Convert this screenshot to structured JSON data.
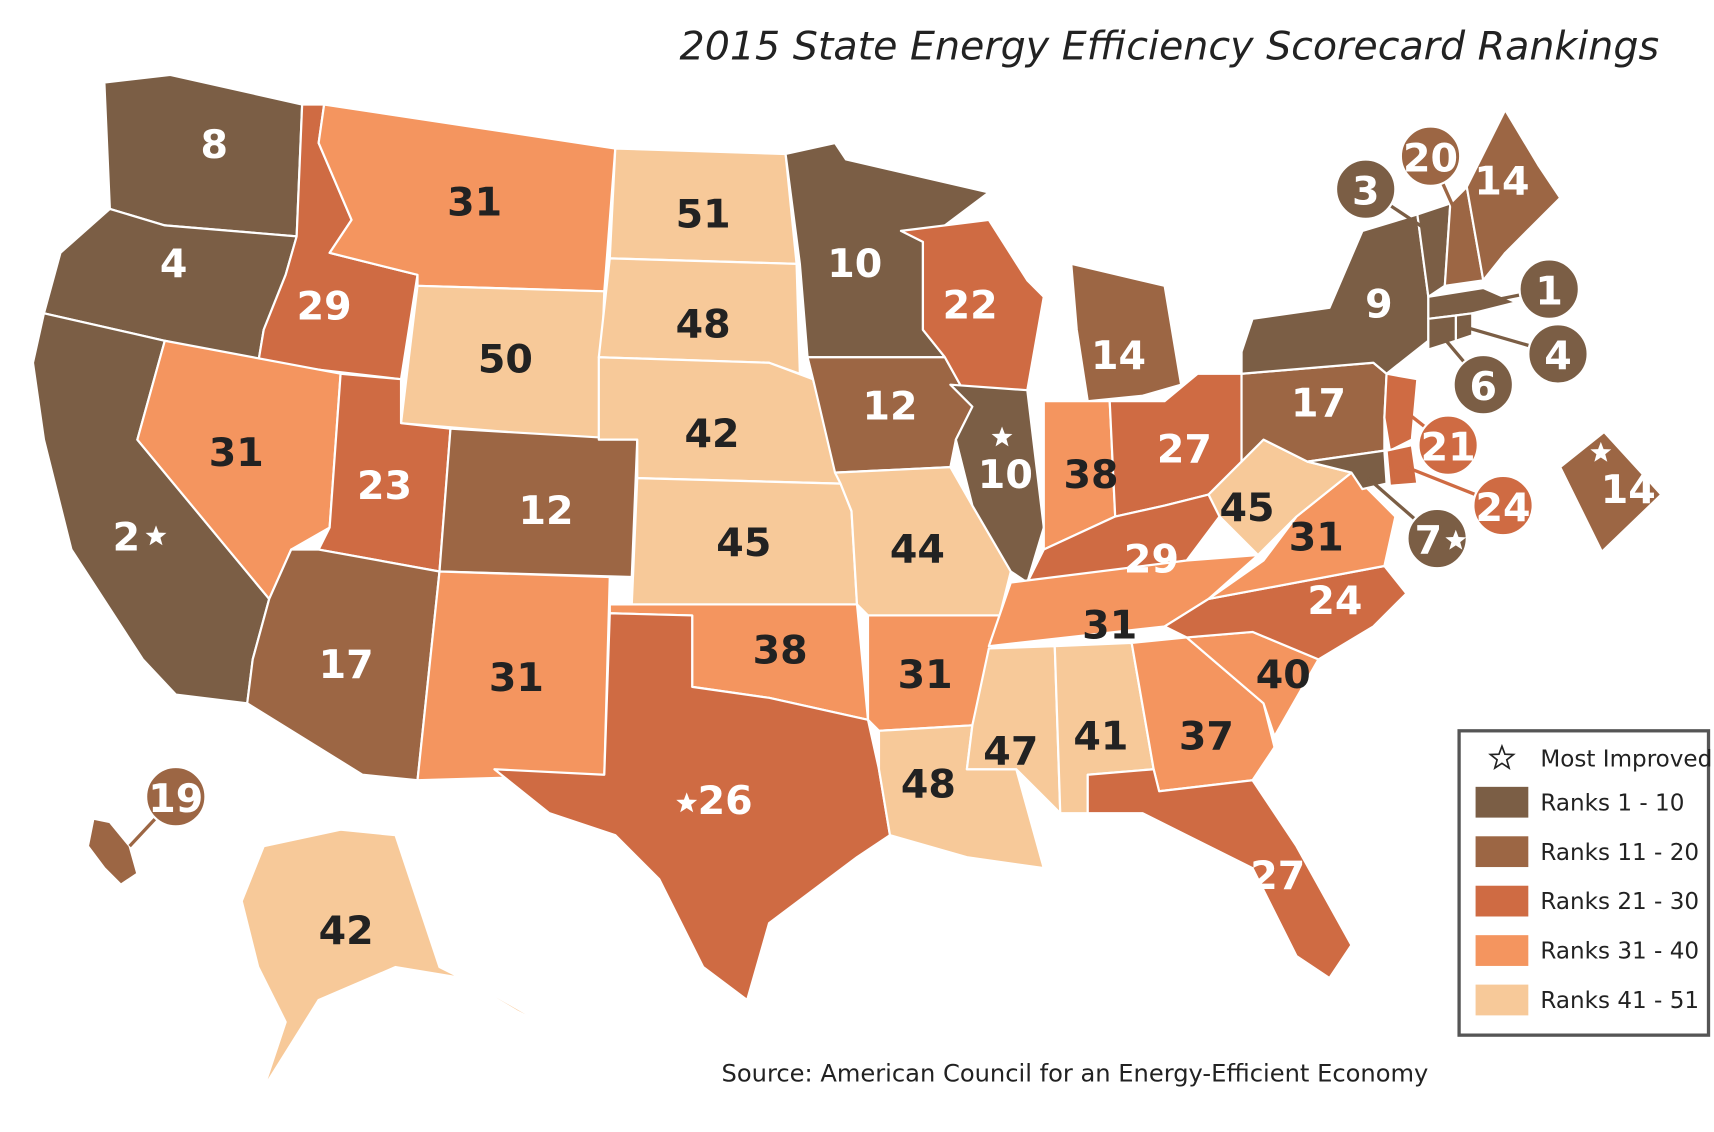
{
  "title": "2015 State Energy Efficiency Scorecard Rankings",
  "source": "Source: American Council for an Energy-Efficient Economy",
  "legend": {
    "star_label": "Most Improved",
    "tiers": [
      {
        "label": "Ranks 1 - 10",
        "color": "#7b5e45"
      },
      {
        "label": "Ranks 11 - 20",
        "color": "#9c6644"
      },
      {
        "label": "Ranks 21 - 30",
        "color": "#cf6b43"
      },
      {
        "label": "Ranks 31 - 40",
        "color": "#f4955f"
      },
      {
        "label": "Ranks 41 - 51",
        "color": "#f7c999"
      }
    ]
  },
  "regions": [
    {
      "rank": 8,
      "color": "#7b5e45"
    },
    {
      "rank": 4,
      "color": "#7b5e45"
    },
    {
      "rank": 2,
      "color": "#7b5e45",
      "most_improved": true
    },
    {
      "rank": 29,
      "color": "#cf6b43"
    },
    {
      "rank": 31,
      "color": "#f4955f"
    },
    {
      "rank": 50,
      "color": "#f7c999"
    },
    {
      "rank": 31,
      "color": "#f4955f"
    },
    {
      "rank": 23,
      "color": "#cf6b43"
    },
    {
      "rank": 12,
      "color": "#9c6644"
    },
    {
      "rank": 17,
      "color": "#9c6644"
    },
    {
      "rank": 31,
      "color": "#f4955f"
    },
    {
      "rank": 51,
      "color": "#f7c999"
    },
    {
      "rank": 48,
      "color": "#f7c999"
    },
    {
      "rank": 42,
      "color": "#f7c999"
    },
    {
      "rank": 45,
      "color": "#f7c999"
    },
    {
      "rank": 38,
      "color": "#f4955f"
    },
    {
      "rank": 26,
      "color": "#cf6b43",
      "most_improved": true
    },
    {
      "rank": 10,
      "color": "#7b5e45"
    },
    {
      "rank": 12,
      "color": "#9c6644"
    },
    {
      "rank": 44,
      "color": "#f7c999"
    },
    {
      "rank": 31,
      "color": "#f4955f"
    },
    {
      "rank": 48,
      "color": "#f7c999"
    },
    {
      "rank": 22,
      "color": "#cf6b43"
    },
    {
      "rank": 10,
      "color": "#7b5e45",
      "most_improved": true
    },
    {
      "rank": 14,
      "color": "#9c6644"
    },
    {
      "rank": 38,
      "color": "#f4955f"
    },
    {
      "rank": 27,
      "color": "#cf6b43"
    },
    {
      "rank": 29,
      "color": "#cf6b43"
    },
    {
      "rank": 31,
      "color": "#f4955f"
    },
    {
      "rank": 47,
      "color": "#f7c999"
    },
    {
      "rank": 41,
      "color": "#f7c999"
    },
    {
      "rank": 37,
      "color": "#f4955f"
    },
    {
      "rank": 27,
      "color": "#cf6b43"
    },
    {
      "rank": 40,
      "color": "#f4955f"
    },
    {
      "rank": 24,
      "color": "#cf6b43"
    },
    {
      "rank": 31,
      "color": "#f4955f"
    },
    {
      "rank": 45,
      "color": "#f7c999"
    },
    {
      "rank": 17,
      "color": "#9c6644"
    },
    {
      "rank": 9,
      "color": "#7b5e45"
    },
    {
      "rank": 21,
      "color": "#cf6b43"
    },
    {
      "rank": 7,
      "color": "#7b5e45",
      "most_improved": true
    },
    {
      "rank": 24,
      "color": "#cf6b43"
    },
    {
      "rank": 3,
      "color": "#7b5e45"
    },
    {
      "rank": 20,
      "color": "#9c6644"
    },
    {
      "rank": 14,
      "color": "#9c6644"
    },
    {
      "rank": 1,
      "color": "#7b5e45"
    },
    {
      "rank": 4,
      "color": "#7b5e45"
    },
    {
      "rank": 6,
      "color": "#7b5e45"
    },
    {
      "rank": 14,
      "color": "#9c6644",
      "most_improved": true
    },
    {
      "rank": 42,
      "color": "#f7c999"
    },
    {
      "rank": 19,
      "color": "#9c6644"
    }
  ]
}
